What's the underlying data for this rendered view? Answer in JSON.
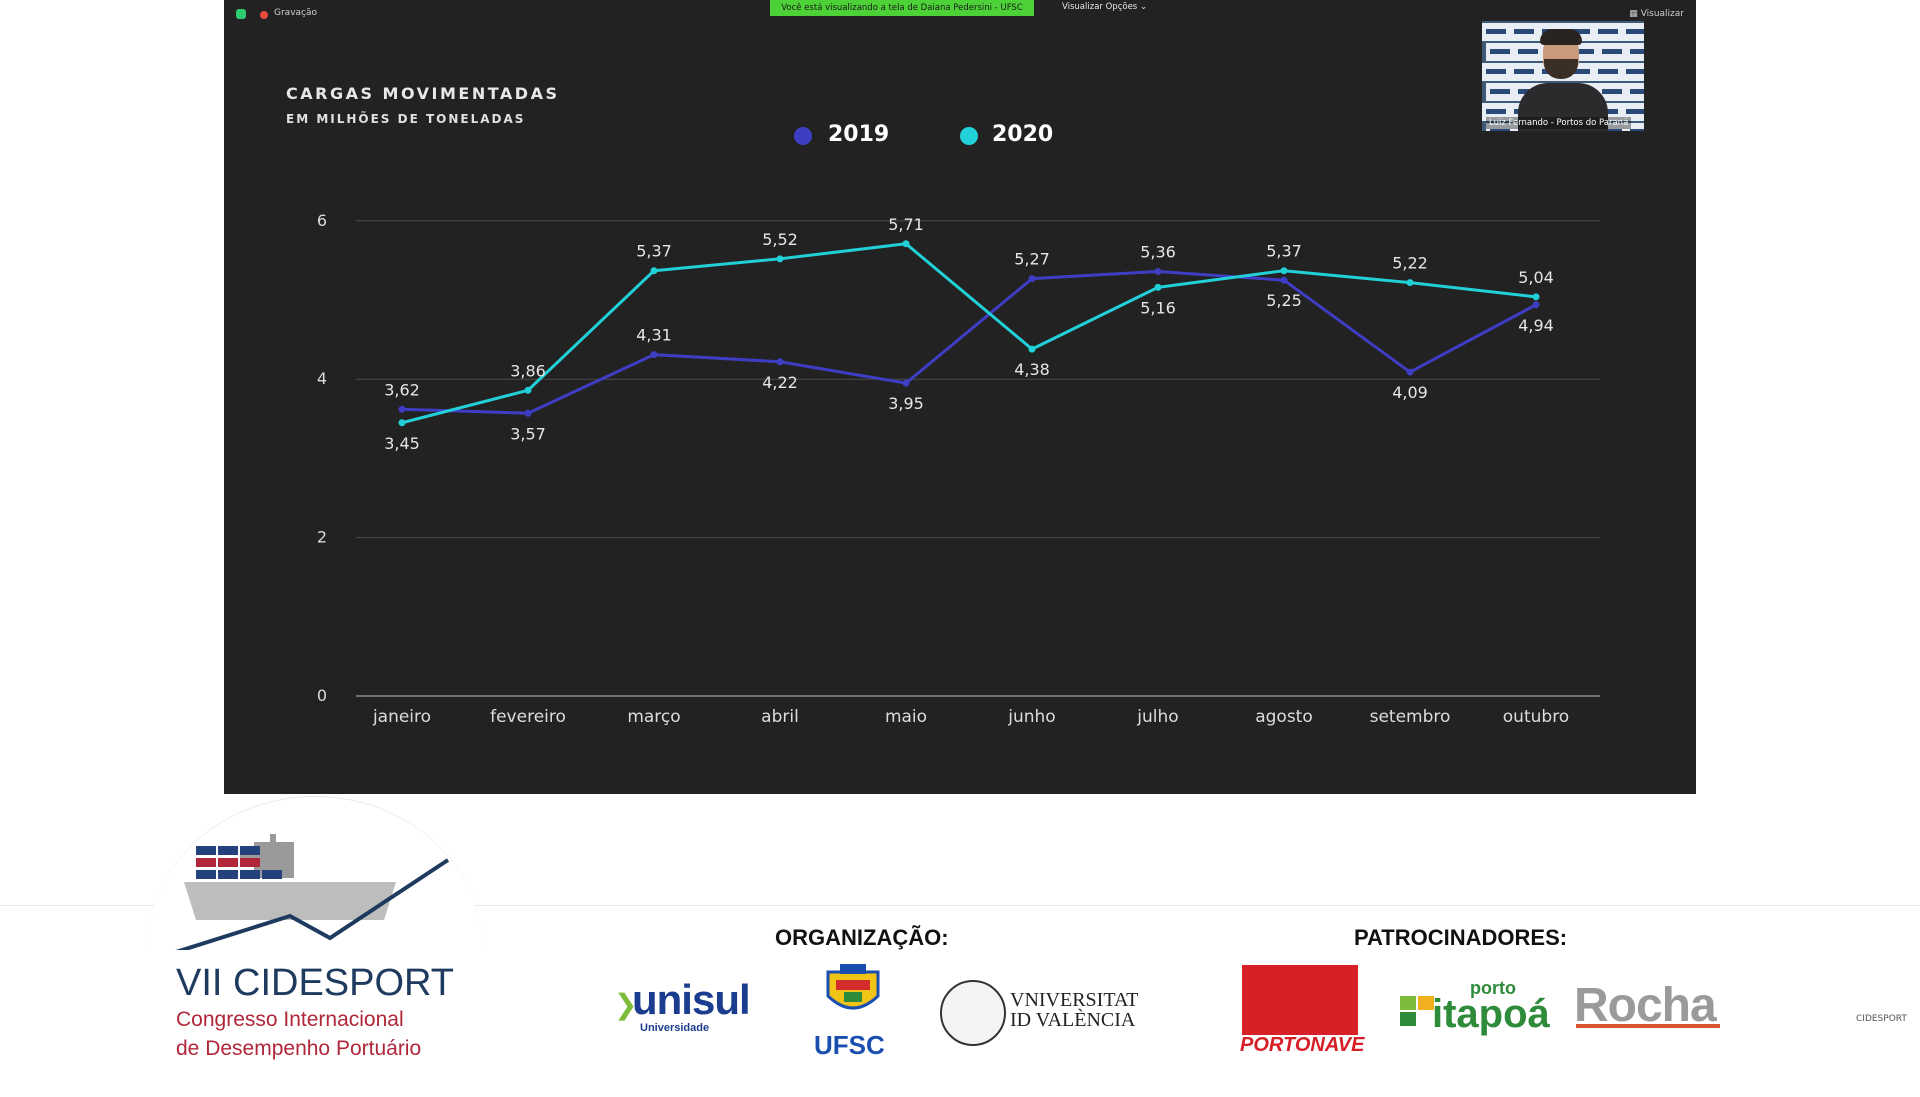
{
  "zoom": {
    "recording_label": "Gravação",
    "share_banner": "Você está visualizando a tela de Daiana Pedersini - UFSC",
    "view_options": "Visualizar Opções",
    "view_button": "Visualizar",
    "participant_name": "Luiz Fernando - Portos do Paraná"
  },
  "chart_data": {
    "type": "line",
    "title": "CARGAS MOVIMENTADAS",
    "subtitle": "EM MILHÕES DE TONELADAS",
    "categories": [
      "janeiro",
      "fevereiro",
      "março",
      "abril",
      "maio",
      "junho",
      "julho",
      "agosto",
      "setembro",
      "outubro"
    ],
    "series": [
      {
        "name": "2019",
        "color": "#3f3dc4",
        "values": [
          3.62,
          3.57,
          4.31,
          4.22,
          3.95,
          5.27,
          5.36,
          5.25,
          4.09,
          4.94
        ],
        "labels": [
          "3,62",
          "3,57",
          "4,31",
          "4,22",
          "3,95",
          "5,27",
          "5,36",
          "5,25",
          "4,09",
          "4,94"
        ]
      },
      {
        "name": "2020",
        "color": "#22d0d8",
        "values": [
          3.45,
          3.86,
          5.37,
          5.52,
          5.71,
          4.38,
          5.16,
          5.37,
          5.22,
          5.04
        ],
        "labels": [
          "3,45",
          "3,86",
          "5,37",
          "5,52",
          "5,71",
          "4,38",
          "5,16",
          "5,37",
          "5,22",
          "5,04"
        ]
      }
    ],
    "yticks": [
      "0",
      "2",
      "4",
      "6"
    ],
    "ylim": [
      0,
      6.2
    ],
    "grid": true,
    "legend": "top-center"
  },
  "branding": {
    "event_title": "VII CIDESPORT",
    "event_line1": "Congresso Internacional",
    "event_line2": "de Desempenho Portuário",
    "organization_heading": "ORGANIZAÇÃO:",
    "sponsors_heading": "PATROCINADORES:",
    "org_unisul": "unisul",
    "org_unisul_sub": "Universidade",
    "org_ufsc": "UFSC",
    "org_valencia_1": "VNIVERSITAT",
    "org_valencia_2": "ID VALÈNCIA",
    "sponsor_portonave": "PORTONAVE",
    "sponsor_itapoa_porto": "porto",
    "sponsor_itapoa": "itapoá",
    "sponsor_rocha": "Rocha",
    "mini_logo": "CIDESPORT"
  }
}
